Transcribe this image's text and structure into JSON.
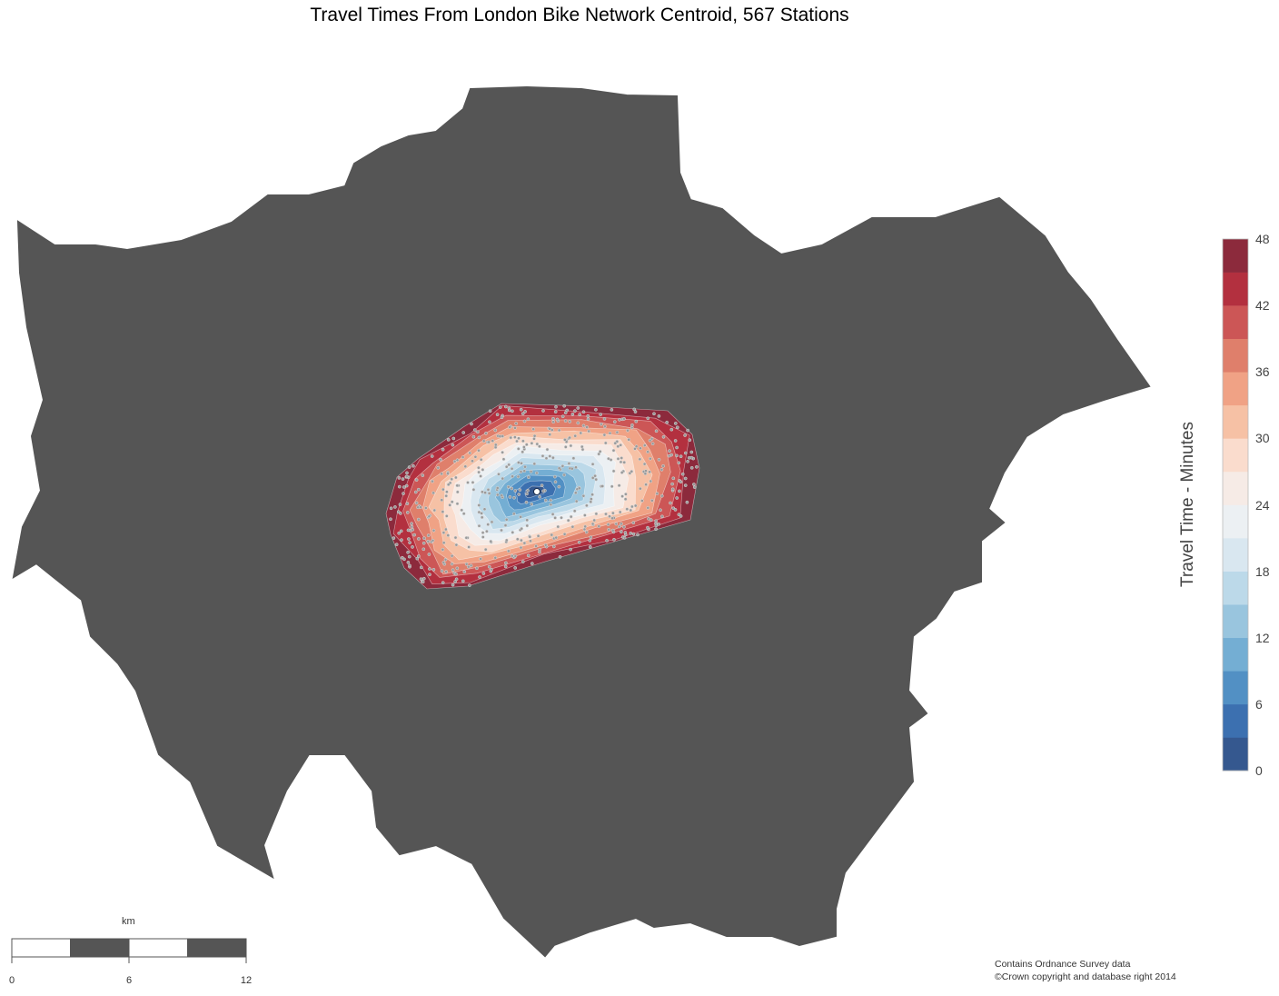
{
  "title": "Travel Times From London Bike Network Centroid, 567 Stations",
  "colors": {
    "land": "#555555",
    "background": "#ffffff",
    "station_fill": "#9a9a9a",
    "station_stroke": "#dddddd",
    "centroid": "#ffffff"
  },
  "colorbar": {
    "title": "Travel Time - Minutes",
    "range": [
      0,
      48
    ],
    "band_width": 3,
    "ticks": [
      "0",
      "6",
      "12",
      "18",
      "24",
      "30",
      "36",
      "42",
      "48"
    ],
    "colors": [
      "#35588f",
      "#3c70b0",
      "#5290c4",
      "#74aed3",
      "#99c5de",
      "#bcd9e9",
      "#d9e7f0",
      "#ecf0f3",
      "#f6ebe6",
      "#fadccd",
      "#f6c1a5",
      "#f0a285",
      "#df7f6b",
      "#cc5656",
      "#b3303f",
      "#8c2a3c"
    ]
  },
  "stations": {
    "count": 567
  },
  "scale_bar": {
    "unit": "km",
    "labels": [
      "0",
      "6",
      "12"
    ]
  },
  "attribution": {
    "line1": "Contains Ordnance Survey data",
    "line2": "©Crown copyright and database right 2014"
  }
}
